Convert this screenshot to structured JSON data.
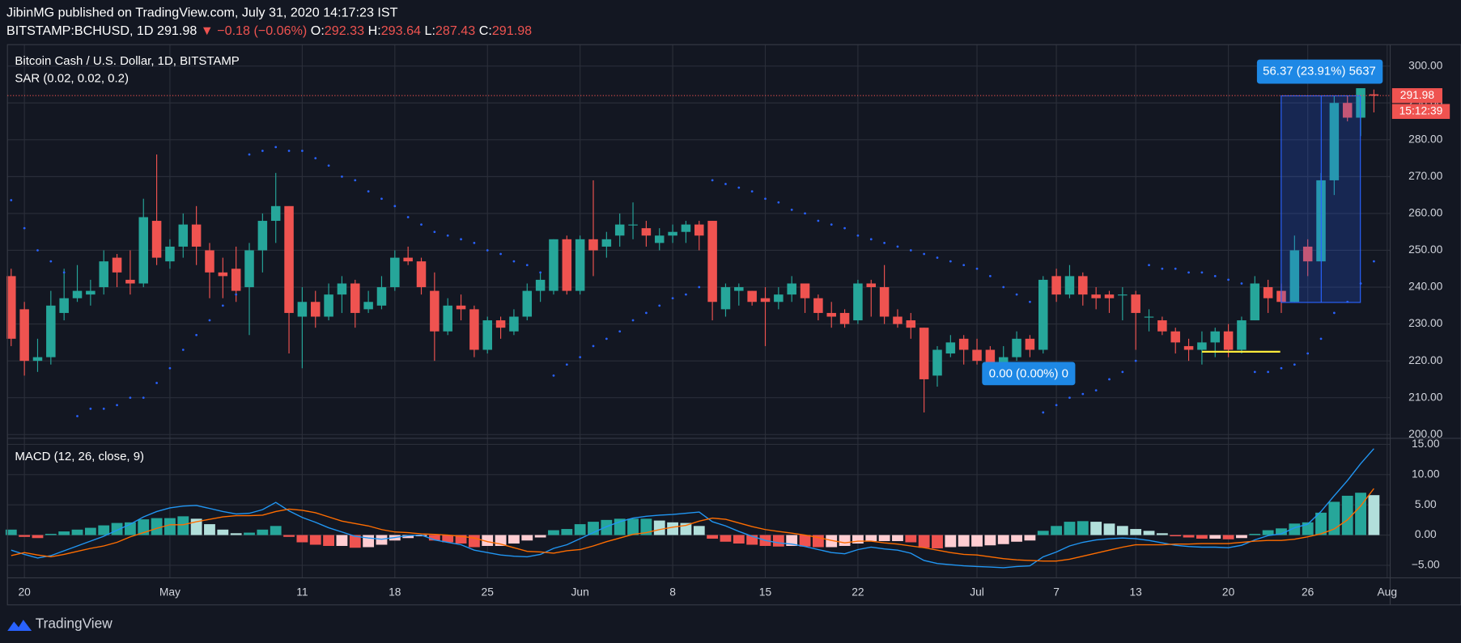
{
  "header": {
    "publisher": "JibinMG published on TradingView.com, July 31, 2020 14:17:23 IST",
    "symbol": "BITSTAMP:BCHUSD, 1D",
    "price": 291.98,
    "change": "▼ −0.18 (−0.06%)",
    "o_label": "O:",
    "open": 292.33,
    "h_label": "H:",
    "high": 293.64,
    "l_label": "L:",
    "low": 287.43,
    "c_label": "C:",
    "close": 291.98
  },
  "footer": {
    "brand": "TradingView"
  },
  "chart_data": {
    "type": "candlestick",
    "title": "Bitcoin Cash / U.S. Dollar, 1D, BITSTAMP",
    "sar_label": "SAR (0.02, 0.02, 0.2)",
    "last_price": 291.98,
    "countdown": "15:12:39",
    "measure_label": "56.37 (23.91%) 5637",
    "zero_label": "0.00 (0.00%) 0",
    "up_color": "#26a69a",
    "down_color": "#ef5350",
    "sar_color": "#2962ff",
    "grid": true,
    "xlim": [
      -0.28,
      104.23
    ],
    "xticks": [
      {
        "value": 1,
        "label": "20"
      },
      {
        "value": 12,
        "label": "May"
      },
      {
        "value": 22,
        "label": "11"
      },
      {
        "value": 29,
        "label": "18"
      },
      {
        "value": 36,
        "label": "25"
      },
      {
        "value": 43,
        "label": "Jun"
      },
      {
        "value": 50,
        "label": "8"
      },
      {
        "value": 57,
        "label": "15"
      },
      {
        "value": 64,
        "label": "22"
      },
      {
        "value": 73,
        "label": "Jul"
      },
      {
        "value": 79,
        "label": "7"
      },
      {
        "value": 85,
        "label": "13"
      },
      {
        "value": 92,
        "label": "20"
      },
      {
        "value": 98,
        "label": "26"
      },
      {
        "value": 104,
        "label": "Aug"
      }
    ],
    "ylim": [
      199.24,
      305.81
    ],
    "yticks": [
      {
        "value": 200,
        "label": "200.00"
      },
      {
        "value": 210,
        "label": "210.00"
      },
      {
        "value": 220,
        "label": "220.00"
      },
      {
        "value": 230,
        "label": "230.00"
      },
      {
        "value": 240,
        "label": "240.00"
      },
      {
        "value": 250,
        "label": "250.00"
      },
      {
        "value": 260,
        "label": "260.00"
      },
      {
        "value": 270,
        "label": "270.00"
      },
      {
        "value": 280,
        "label": "280.00"
      },
      {
        "value": 290,
        "label": "290.00"
      },
      {
        "value": 300,
        "label": "300.00"
      }
    ],
    "open": [
      243,
      234,
      220,
      221,
      233,
      237,
      238,
      240,
      248,
      242,
      241,
      258,
      247,
      251,
      257,
      250,
      244,
      245,
      240,
      250,
      258,
      262,
      232,
      236,
      232,
      238,
      241,
      234,
      235,
      240,
      248,
      247,
      239,
      228,
      235,
      234,
      223,
      231,
      228,
      232,
      239,
      239,
      253,
      239,
      253,
      251,
      254,
      257,
      256,
      252,
      254,
      255,
      257,
      258,
      234,
      239,
      239,
      237,
      236,
      238,
      241,
      237,
      233,
      233,
      231,
      241,
      240,
      232,
      231,
      229,
      216,
      222,
      226,
      223,
      223,
      219,
      221,
      226,
      223,
      243,
      238,
      243,
      238,
      238,
      238,
      238,
      232,
      231,
      228,
      224,
      223,
      225,
      228,
      223,
      231,
      240,
      239,
      236,
      251,
      247,
      269,
      290,
      286,
      292.33
    ],
    "high": [
      245,
      236,
      226,
      239,
      245,
      246,
      242,
      250,
      249,
      250,
      264,
      276,
      253,
      260,
      262,
      252,
      248,
      251,
      252,
      260,
      271,
      262,
      240,
      239,
      241,
      243,
      242,
      239,
      243,
      250,
      251,
      248,
      244,
      237,
      238,
      235,
      232,
      232,
      234,
      241,
      244,
      253,
      254,
      254,
      269,
      255,
      260,
      263,
      258,
      256,
      257,
      258,
      258,
      258,
      241,
      241,
      239,
      240,
      240,
      243,
      241,
      238,
      236,
      234,
      242,
      242,
      246,
      234,
      233,
      229,
      224,
      227,
      227,
      226,
      224,
      224,
      228,
      227,
      243,
      245,
      246,
      244,
      240,
      239,
      240,
      239,
      234,
      232,
      229,
      226,
      228,
      229,
      230,
      232,
      243,
      242,
      241,
      254,
      253,
      271,
      292,
      292,
      294,
      293.64
    ],
    "low": [
      224,
      216,
      217,
      219,
      231,
      236,
      235,
      238,
      240,
      238,
      240,
      246,
      245,
      248,
      246,
      237,
      237,
      236,
      227,
      244,
      252,
      222,
      218,
      229,
      231,
      233,
      229,
      233,
      234,
      239,
      246,
      238,
      220,
      227,
      231,
      221,
      222,
      226,
      227,
      231,
      236,
      238,
      238,
      238,
      243,
      248,
      251,
      253,
      251,
      250,
      252,
      252,
      250,
      231,
      232,
      235,
      235,
      224,
      234,
      236,
      233,
      231,
      229,
      229,
      230,
      232,
      230,
      229,
      226,
      206,
      213,
      221,
      219,
      219,
      216,
      217,
      220,
      221,
      222,
      236,
      237,
      235,
      234,
      233,
      231,
      223,
      228,
      227,
      222,
      220,
      219,
      221,
      221,
      222,
      231,
      233,
      233,
      236,
      243,
      247,
      265,
      285,
      281,
      287.43
    ],
    "close": [
      226,
      220,
      221,
      235,
      237,
      239,
      239,
      247,
      244,
      241,
      259,
      248,
      251,
      257,
      251,
      244,
      243,
      239,
      250,
      258,
      262,
      233,
      236,
      232,
      238,
      241,
      233,
      236,
      240,
      248,
      247,
      240,
      228,
      235,
      234,
      223,
      231,
      229,
      232,
      239,
      242,
      253,
      239,
      253,
      250,
      253,
      257,
      257,
      254,
      254,
      255,
      257,
      254,
      236,
      240,
      240,
      236,
      236,
      238,
      241,
      237,
      233,
      232,
      230,
      241,
      240,
      232,
      230,
      229,
      215,
      223,
      225,
      223,
      220,
      219,
      221,
      226,
      223,
      242,
      238,
      243,
      238,
      237,
      237,
      238,
      233,
      232,
      228,
      225,
      223,
      225,
      228,
      223,
      231,
      241,
      237,
      236,
      250,
      247,
      269,
      290,
      286,
      294,
      291.98
    ],
    "sar": [
      263.6,
      256,
      250,
      247,
      244,
      205,
      207,
      207,
      208,
      210,
      210,
      214,
      218,
      223,
      227,
      231,
      235,
      238,
      276,
      277,
      278,
      277,
      277,
      275,
      273,
      270,
      269,
      266,
      264,
      262,
      259,
      257,
      255,
      254,
      253,
      252,
      250,
      249,
      247,
      246,
      244,
      216,
      219,
      221,
      224,
      226,
      228,
      231,
      233,
      235,
      237,
      238,
      240,
      269,
      268,
      267,
      266,
      264,
      263,
      261,
      260,
      258,
      257,
      256,
      254,
      253,
      252,
      251,
      250,
      249,
      248,
      247,
      246,
      245,
      243,
      240,
      238,
      236,
      206,
      208,
      210,
      211,
      212,
      215,
      217,
      220,
      246,
      245,
      245,
      244,
      244,
      243,
      242,
      241,
      217,
      217,
      218,
      219,
      222,
      226,
      233,
      236,
      241,
      247
    ],
    "macd": {
      "label": "MACD (12, 26, close, 9)",
      "ylim": [
        -7.08,
        15.85
      ],
      "yticks": [
        {
          "value": -5,
          "label": "−5.00"
        },
        {
          "value": 0,
          "label": "0.00"
        },
        {
          "value": 5,
          "label": "5.00"
        },
        {
          "value": 10,
          "label": "10.00"
        },
        {
          "value": 15,
          "label": "15.00"
        }
      ],
      "hist_colors": [
        "#26a69a",
        "#b2dfdb",
        "#ffcdd2",
        "#ef5350"
      ],
      "histogram": [
        0.9,
        -0.3,
        -0.5,
        0.2,
        0.6,
        0.9,
        1.2,
        1.6,
        2,
        2.1,
        2.6,
        2.8,
        2.8,
        3.1,
        2.7,
        1.8,
        0.9,
        0.3,
        0.4,
        0.9,
        1.5,
        -0.3,
        -1.2,
        -1.6,
        -1.8,
        -1.8,
        -2.1,
        -2.0,
        -1.6,
        -0.9,
        -0.5,
        -0.2,
        -0.9,
        -1.2,
        -1.4,
        -2.0,
        -1.8,
        -1.8,
        -1.4,
        -0.9,
        -0.4,
        0.8,
        1.0,
        1.8,
        2.2,
        2.5,
        2.7,
        2.7,
        2.7,
        2.4,
        2.1,
        2.0,
        1.5,
        -0.6,
        -1.1,
        -1.4,
        -1.6,
        -1.8,
        -1.9,
        -1.8,
        -1.9,
        -2.0,
        -2.0,
        -1.8,
        -1.4,
        -1.0,
        -1.0,
        -1.0,
        -1.2,
        -2.1,
        -2.2,
        -2.0,
        -1.9,
        -1.9,
        -1.7,
        -1.5,
        -1.1,
        -0.9,
        0.7,
        1.5,
        2.2,
        2.3,
        2.2,
        1.9,
        1.5,
        1.0,
        0.7,
        0.3,
        -0.2,
        -0.4,
        -0.6,
        -0.6,
        -0.7,
        -0.5,
        0.2,
        0.8,
        1.1,
        1.9,
        2.1,
        3.7,
        5.5,
        6.5,
        7,
        6.6
      ],
      "series": [
        {
          "name": "MACD",
          "color": "#2196f3",
          "values": [
            -2.5,
            -3.2,
            -3.8,
            -3.4,
            -2.6,
            -1.8,
            -1.0,
            -0.2,
            0.8,
            1.8,
            3.0,
            3.9,
            4.5,
            4.8,
            4.9,
            4.4,
            3.9,
            3.5,
            3.6,
            4.2,
            5.4,
            4.0,
            2.9,
            2.1,
            1.2,
            0.5,
            -0.2,
            -0.5,
            -0.7,
            -0.4,
            -0.1,
            0.0,
            -0.8,
            -1.2,
            -1.6,
            -2.5,
            -2.9,
            -3.3,
            -3.5,
            -3.6,
            -3.2,
            -2.2,
            -1.6,
            -0.6,
            0.4,
            1.4,
            2.2,
            2.8,
            3.1,
            3.3,
            3.4,
            3.6,
            3.8,
            2.2,
            1.5,
            0.6,
            -0.2,
            -0.9,
            -1.3,
            -1.5,
            -1.9,
            -2.4,
            -2.9,
            -3.1,
            -2.4,
            -2.0,
            -2.3,
            -2.5,
            -3.0,
            -4.2,
            -4.7,
            -4.9,
            -5.1,
            -5.2,
            -5.3,
            -5.4,
            -5.2,
            -5.1,
            -3.6,
            -2.8,
            -1.8,
            -1.2,
            -0.8,
            -0.6,
            -0.5,
            -0.6,
            -0.9,
            -1.3,
            -1.7,
            -1.9,
            -2.0,
            -2.0,
            -2.1,
            -1.7,
            -0.8,
            -0.1,
            0.2,
            1.2,
            1.8,
            3.9,
            6.5,
            9.0,
            11.8,
            14.3
          ]
        },
        {
          "name": "Signal",
          "color": "#ff6d00",
          "values": [
            -3.4,
            -2.9,
            -3.3,
            -3.6,
            -3.2,
            -2.7,
            -2.2,
            -1.8,
            -1.2,
            -0.3,
            0.4,
            1.1,
            1.7,
            1.7,
            2.2,
            2.6,
            3.0,
            3.2,
            3.2,
            3.3,
            3.9,
            4.3,
            4.1,
            3.7,
            3.0,
            2.3,
            1.9,
            1.5,
            0.9,
            0.5,
            0.4,
            0.2,
            0.1,
            0.0,
            -0.2,
            -0.5,
            -1.1,
            -1.5,
            -2.1,
            -2.7,
            -2.8,
            -3.0,
            -2.6,
            -2.4,
            -1.8,
            -1.1,
            -0.5,
            0.1,
            0.4,
            0.9,
            1.3,
            1.6,
            2.3,
            2.8,
            2.6,
            2.0,
            1.4,
            0.9,
            0.6,
            0.3,
            0.0,
            -0.4,
            -0.9,
            -1.3,
            -1.0,
            -1.0,
            -1.3,
            -1.5,
            -1.8,
            -2.1,
            -2.5,
            -2.9,
            -3.2,
            -3.3,
            -3.6,
            -3.9,
            -4.1,
            -4.2,
            -4.3,
            -4.3,
            -4.0,
            -3.5,
            -3.0,
            -2.5,
            -2.0,
            -1.6,
            -1.6,
            -1.6,
            -1.5,
            -1.5,
            -1.4,
            -1.4,
            -1.4,
            -1.2,
            -1.0,
            -0.9,
            -0.9,
            -0.7,
            -0.3,
            0.2,
            1.0,
            2.5,
            4.8,
            7.7
          ]
        }
      ]
    }
  }
}
